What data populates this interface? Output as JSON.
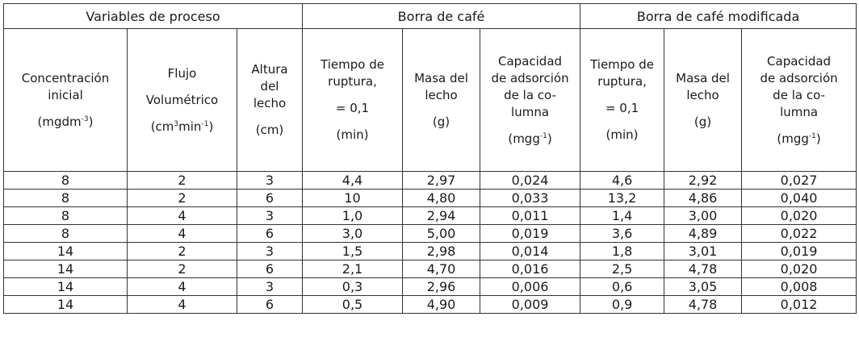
{
  "header": {
    "groups": [
      "Variables de proceso",
      "Borra de café",
      "Borra de café modificada"
    ],
    "columns": [
      {
        "lines": [
          "Concentración",
          "inicial"
        ],
        "unit": "(mgdm",
        "sup": "-3",
        "unit_end": ")"
      },
      {
        "lines": [
          "Flujo"
        ],
        "line2": "Volumétrico",
        "unit": "(cm",
        "sup": "3",
        "unit_mid": "min",
        "sup2": "-1",
        "unit_end": ")"
      },
      {
        "lines": [
          "Altura",
          "del",
          "lecho"
        ],
        "unit": "(cm)"
      },
      {
        "lines": [
          "Tiempo de",
          "ruptura,"
        ],
        "eq": "= 0,1",
        "unit": "(min)"
      },
      {
        "lines": [
          "Masa del",
          "lecho"
        ],
        "unit": "(g)"
      },
      {
        "lines": [
          "Capacidad",
          "de adsorción",
          "de la co-",
          "lumna"
        ],
        "unit": "(mgg",
        "sup": "-1",
        "unit_end": ")"
      },
      {
        "lines": [
          "Tiempo de",
          "ruptura,"
        ],
        "eq": "= 0,1",
        "unit": "(min)"
      },
      {
        "lines": [
          "Masa del",
          "lecho"
        ],
        "unit": "(g)"
      },
      {
        "lines": [
          "Capacidad",
          "de adsorción",
          "de la co-",
          "lumna"
        ],
        "unit": "(mgg",
        "sup": "-1",
        "unit_end": ")"
      }
    ]
  },
  "rows": [
    [
      "8",
      "2",
      "3",
      "4,4",
      "2,97",
      "0,024",
      "4,6",
      "2,92",
      "0,027"
    ],
    [
      "8",
      "2",
      "6",
      "10",
      "4,80",
      "0,033",
      "13,2",
      "4,86",
      "0,040"
    ],
    [
      "8",
      "4",
      "3",
      "1,0",
      "2,94",
      "0,011",
      "1,4",
      "3,00",
      "0,020"
    ],
    [
      "8",
      "4",
      "6",
      "3,0",
      "5,00",
      "0,019",
      "3,6",
      "4,89",
      "0,022"
    ],
    [
      "14",
      "2",
      "3",
      "1,5",
      "2,98",
      "0,014",
      "1,8",
      "3,01",
      "0,019"
    ],
    [
      "14",
      "2",
      "6",
      "2,1",
      "4,70",
      "0,016",
      "2,5",
      "4,78",
      "0,020"
    ],
    [
      "14",
      "4",
      "3",
      "0,3",
      "2,96",
      "0,006",
      "0,6",
      "3,05",
      "0,008"
    ],
    [
      "14",
      "4",
      "6",
      "0,5",
      "4,90",
      "0,009",
      "0,9",
      "4,78",
      "0,012"
    ]
  ]
}
